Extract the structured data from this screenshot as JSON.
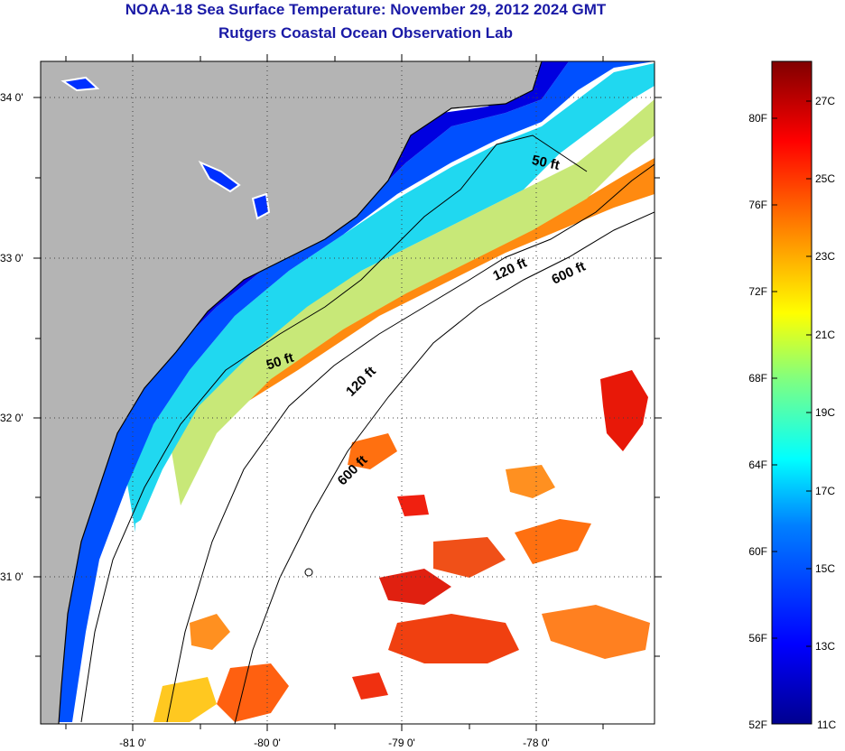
{
  "titles": {
    "line1": "NOAA-18 Sea Surface Temperature:  November 29, 2012 2024 GMT",
    "line2": "Rutgers Coastal Ocean Observation Lab"
  },
  "map": {
    "longitude_labels": [
      "-81 0'",
      "-80 0'",
      "-79 0'",
      "-78 0'"
    ],
    "latitude_labels": [
      "34 0'",
      "33 0'",
      "32 0'",
      "31 0'"
    ],
    "isobath_labels": [
      "50 ft",
      "120 ft",
      "600 ft",
      "50 ft",
      "120 ft",
      "600 ft"
    ],
    "colors": {
      "land": "#b4b4b4",
      "clouds": "#ffffff",
      "coast": "#000000"
    }
  },
  "colorbar": {
    "fahrenheit_labels": [
      "80F",
      "76F",
      "72F",
      "68F",
      "64F",
      "60F",
      "56F",
      "52F"
    ],
    "celsius_labels": [
      "27C",
      "25C",
      "23C",
      "21C",
      "19C",
      "17C",
      "15C",
      "13C",
      "11C"
    ],
    "palette": [
      "#00008f",
      "#0000ff",
      "#0080ff",
      "#00ffff",
      "#80ff80",
      "#ffff00",
      "#ff8000",
      "#ff0000",
      "#800000"
    ]
  }
}
